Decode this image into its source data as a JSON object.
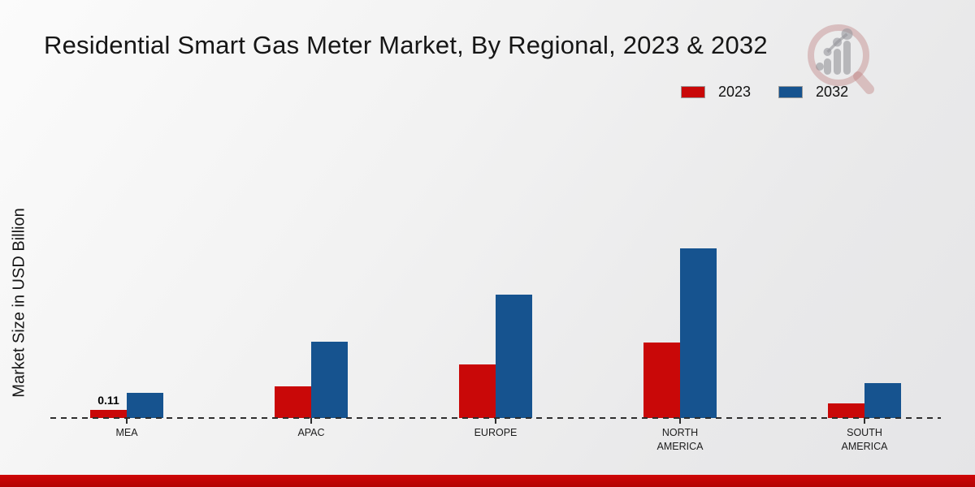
{
  "title": "Residential Smart Gas Meter Market, By Regional, 2023 & 2032",
  "ylabel": "Market Size in USD Billion",
  "chart_data": {
    "type": "bar",
    "categories": [
      "MEA",
      "APAC",
      "EUROPE",
      "NORTH AMERICA",
      "SOUTH AMERICA"
    ],
    "series": [
      {
        "name": "2023",
        "color": "#c90808",
        "values": [
          0.11,
          0.43,
          0.72,
          1.02,
          0.2
        ]
      },
      {
        "name": "2032",
        "color": "#16538f",
        "values": [
          0.34,
          1.03,
          1.67,
          2.3,
          0.47
        ]
      }
    ],
    "bar_labels": [
      {
        "series": "2023",
        "category": "MEA",
        "text": "0.11"
      }
    ],
    "title": "Residential Smart Gas Meter Market, By Regional, 2023 & 2032",
    "xlabel": "",
    "ylabel": "Market Size in USD Billion",
    "ylim": [
      0,
      2.53
    ],
    "grid": false,
    "legend_position": "top-right",
    "baseline_style": "dashed",
    "accent_footer_color": "#c10505"
  }
}
